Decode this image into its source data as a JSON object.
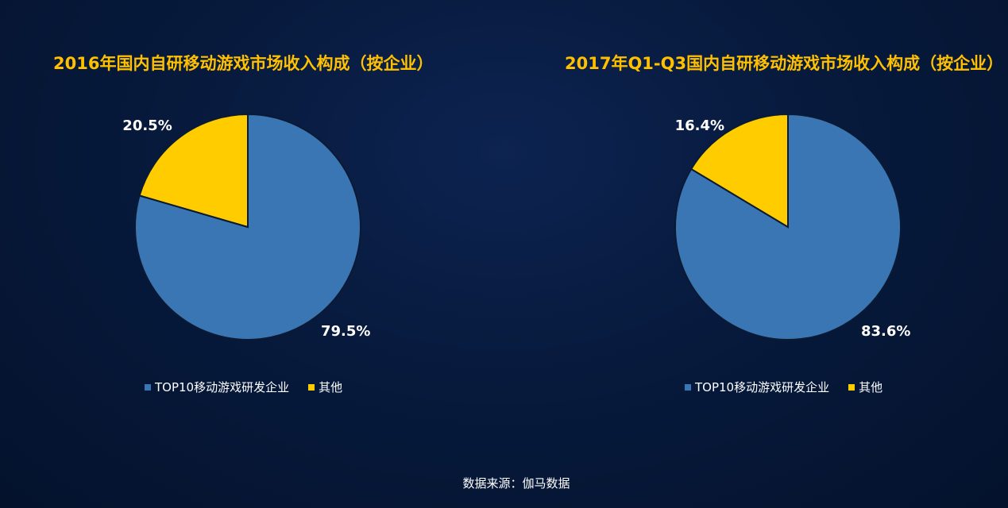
{
  "colors": {
    "top10": "#3a76b4",
    "other": "#ffcc00",
    "title": "#ffc000"
  },
  "source": "数据来源：伽马数据",
  "chart_data": [
    {
      "type": "pie",
      "title": "2016年国内自研移动游戏市场收入构成（按企业）",
      "labels": [
        "TOP10移动游戏研发企业",
        "其他"
      ],
      "values": [
        79.5,
        20.5
      ],
      "value_labels": [
        "79.5%",
        "20.5%"
      ],
      "legend": [
        "TOP10移动游戏研发企业",
        "其他"
      ],
      "legend_position": "bottom"
    },
    {
      "type": "pie",
      "title": "2017年Q1-Q3国内自研移动游戏市场收入构成（按企业）",
      "labels": [
        "TOP10移动游戏研发企业",
        "其他"
      ],
      "values": [
        83.6,
        16.4
      ],
      "value_labels": [
        "83.6%",
        "16.4%"
      ],
      "legend": [
        "TOP10移动游戏研发企业",
        "其他"
      ],
      "legend_position": "bottom"
    }
  ]
}
